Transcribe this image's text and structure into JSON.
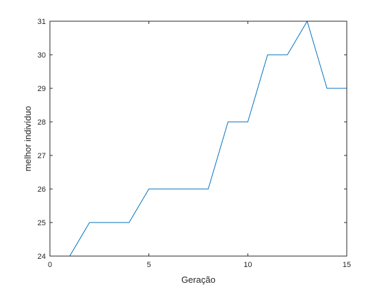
{
  "chart_data": {
    "type": "line",
    "title": "",
    "xlabel": "Geração",
    "ylabel": "melhor indivíduo",
    "xlim": [
      0,
      15
    ],
    "ylim": [
      24,
      31
    ],
    "xticks": [
      0,
      5,
      10,
      15
    ],
    "yticks": [
      24,
      25,
      26,
      27,
      28,
      29,
      30,
      31
    ],
    "xtick_labels": [
      "0",
      "5",
      "10",
      "15"
    ],
    "ytick_labels": [
      "24",
      "25",
      "26",
      "27",
      "28",
      "29",
      "30",
      "31"
    ],
    "grid": false,
    "legend": "none",
    "line_color": "#0072bd",
    "series": [
      {
        "x": [
          1,
          2,
          3,
          4,
          5,
          6,
          7,
          8,
          9,
          10,
          11,
          12,
          13,
          14,
          15
        ],
        "values": [
          24,
          25,
          25,
          25,
          26,
          26,
          26,
          26,
          28,
          28,
          30,
          30,
          31,
          29,
          29
        ]
      }
    ]
  }
}
